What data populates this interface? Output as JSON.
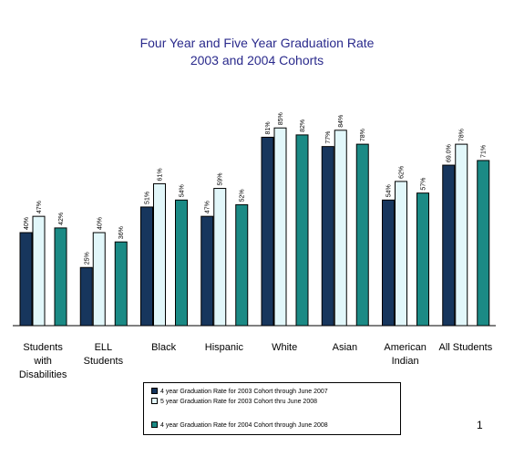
{
  "chart_data": {
    "type": "bar",
    "title_lines": [
      "Four Year and Five Year Graduation Rate",
      "2003  and 2004 Cohorts"
    ],
    "categories": [
      [
        "Students",
        "with",
        "Disabilities"
      ],
      [
        "ELL",
        "Students"
      ],
      [
        "Black"
      ],
      [
        "Hispanic"
      ],
      [
        "White"
      ],
      [
        "Asian"
      ],
      [
        "American",
        "Indian"
      ],
      [
        "All Students"
      ]
    ],
    "series": [
      {
        "name": "4 year Graduation Rate for 2003 Cohort through June 2007",
        "color": "#17365d",
        "values": [
          40,
          25,
          51,
          47,
          81,
          77,
          54,
          69
        ],
        "labels": [
          "40%",
          "25%",
          "51%",
          "47%",
          "81%",
          "77%",
          "54%",
          "69.0%"
        ]
      },
      {
        "name": "5 year Graduation Rate for 2003 Cohort thru June 2008",
        "color": "#e2f7fa",
        "values": [
          47,
          40,
          61,
          59,
          85,
          84,
          62,
          78
        ],
        "labels": [
          "47%",
          "40%",
          "61%",
          "59%",
          "85%",
          "84%",
          "62%",
          "78%"
        ]
      },
      {
        "name": "4 year Graduation Rate for 2004 Cohort through June 2008",
        "color": "#1b8a85",
        "values": [
          42,
          36,
          54,
          52,
          82,
          78,
          57,
          71
        ],
        "labels": [
          "42%",
          "36%",
          "54%",
          "52%",
          "82%",
          "78%",
          "57%",
          "71%"
        ]
      }
    ],
    "ylim": [
      0,
      100
    ],
    "grid": false,
    "legend_position": "bottom"
  },
  "page_number": "1"
}
